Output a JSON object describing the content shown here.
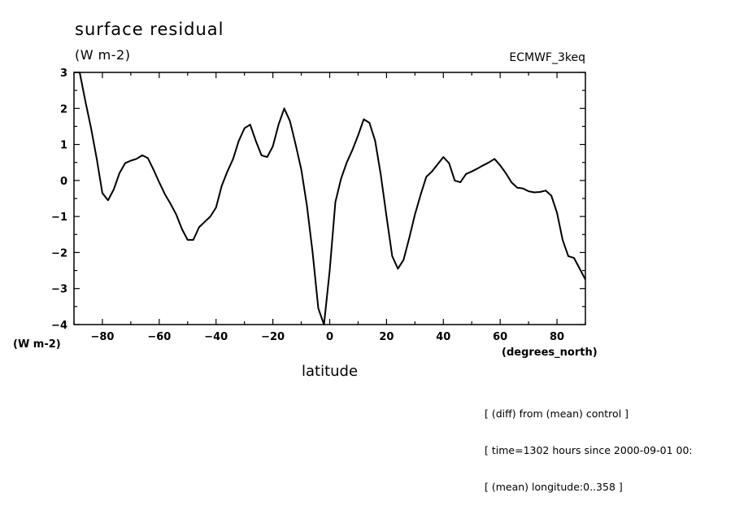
{
  "chart_data": {
    "type": "line",
    "title": "surface residual",
    "units": "(W m-2)",
    "model_label": "ECMWF_3keq",
    "ylabel": "(W m-2)",
    "xlabel": "latitude",
    "xunit_label": "(degrees_north)",
    "xlim": [
      -90,
      90
    ],
    "ylim": [
      -4,
      3
    ],
    "xticks": [
      -80,
      -60,
      -40,
      -20,
      0,
      20,
      40,
      60,
      80
    ],
    "xtick_labels": [
      "−80",
      "−60",
      "−40",
      "−20",
      "0",
      "20",
      "40",
      "60",
      "80"
    ],
    "yticks": [
      3,
      2,
      1,
      0,
      -1,
      -2,
      -3,
      -4
    ],
    "ytick_labels": [
      "3",
      "2",
      "1",
      "0",
      "−1",
      "−2",
      "−3",
      "−4"
    ],
    "grid": false,
    "series": [
      {
        "x": [
          -90,
          -88,
          -86,
          -84,
          -82,
          -80,
          -78,
          -76,
          -74,
          -72,
          -70,
          -68,
          -66,
          -64,
          -62,
          -60,
          -58,
          -56,
          -54,
          -52,
          -50,
          -48,
          -46,
          -44,
          -42,
          -40,
          -38,
          -36,
          -34,
          -32,
          -30,
          -28,
          -26,
          -24,
          -22,
          -20,
          -18,
          -16,
          -14,
          -12,
          -10,
          -8,
          -6,
          -4,
          -2,
          0,
          2,
          4,
          6,
          8,
          10,
          12,
          14,
          16,
          18,
          20,
          22,
          24,
          26,
          28,
          30,
          32,
          34,
          36,
          38,
          40,
          42,
          44,
          46,
          48,
          50,
          52,
          54,
          56,
          58,
          60,
          62,
          64,
          66,
          68,
          70,
          72,
          74,
          76,
          78,
          80,
          82,
          84,
          86,
          88,
          90
        ],
        "y": [
          3.0,
          3.05,
          2.2,
          1.45,
          0.6,
          -0.35,
          -0.55,
          -0.25,
          0.2,
          0.48,
          0.55,
          0.6,
          0.7,
          0.62,
          0.3,
          -0.05,
          -0.38,
          -0.65,
          -0.95,
          -1.35,
          -1.65,
          -1.65,
          -1.3,
          -1.15,
          -1.0,
          -0.75,
          -0.15,
          0.25,
          0.6,
          1.1,
          1.45,
          1.55,
          1.1,
          0.7,
          0.65,
          0.95,
          1.55,
          2.0,
          1.65,
          1.0,
          0.3,
          -0.7,
          -2.0,
          -3.55,
          -4.0,
          -2.5,
          -0.6,
          0.05,
          0.5,
          0.85,
          1.25,
          1.7,
          1.6,
          1.1,
          0.15,
          -1.0,
          -2.1,
          -2.45,
          -2.2,
          -1.6,
          -0.95,
          -0.4,
          0.1,
          0.25,
          0.45,
          0.65,
          0.48,
          0.0,
          -0.05,
          0.18,
          0.25,
          0.33,
          0.42,
          0.5,
          0.6,
          0.42,
          0.2,
          -0.05,
          -0.2,
          -0.22,
          -0.3,
          -0.33,
          -0.32,
          -0.28,
          -0.42,
          -0.9,
          -1.65,
          -2.1,
          -2.15,
          -2.45,
          -2.75
        ]
      }
    ]
  },
  "notes": [
    "[ (diff) from (mean) control ]",
    "[ time=1302 hours since 2000-09-01 00:",
    "[ (mean) longitude:0..358 ]"
  ]
}
